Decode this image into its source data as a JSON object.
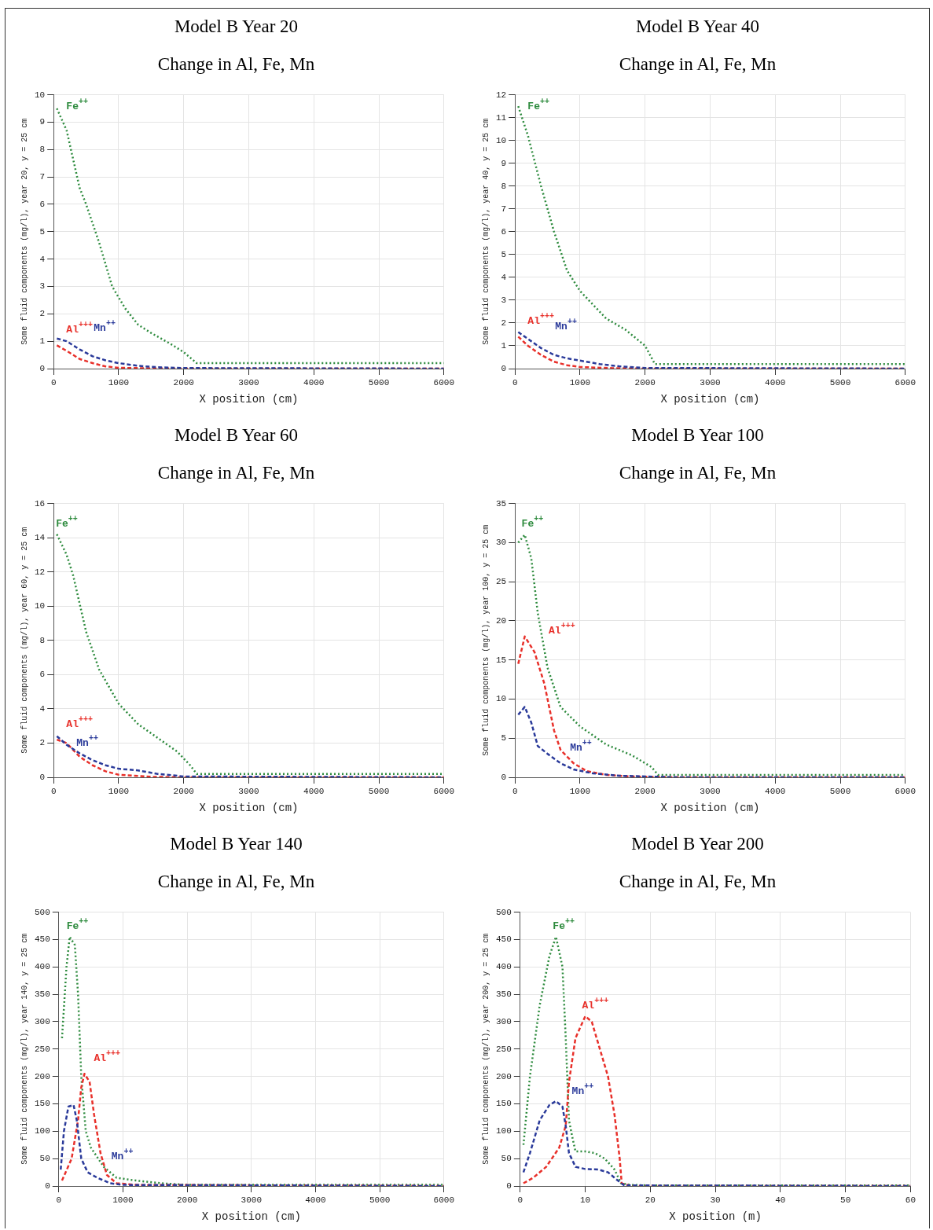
{
  "chart_data": [
    {
      "type": "line",
      "title": "Model B Year 20",
      "subtitle": "Change in Al, Fe, Mn",
      "xlabel": "X position (cm)",
      "ylabel": "Some fluid components (mg/l), year 20, y = 25 cm",
      "xlim": [
        0,
        6000
      ],
      "xticks": [
        0,
        1000,
        2000,
        3000,
        4000,
        5000,
        6000
      ],
      "ylim": [
        0,
        10
      ],
      "yticks": [
        0,
        1,
        2,
        3,
        4,
        5,
        6,
        7,
        8,
        9,
        10
      ],
      "grid": true,
      "legend": false,
      "marker": "none",
      "series": [
        {
          "name": "Fe$^{++}$",
          "color": "#2e8b3e",
          "line_style": "dotted",
          "x": [
            50,
            200,
            400,
            500,
            700,
            900,
            1100,
            1300,
            1500,
            1800,
            2000,
            2200,
            3000,
            6000
          ],
          "values": [
            9.5,
            8.7,
            6.6,
            6.0,
            4.6,
            3.0,
            2.2,
            1.6,
            1.3,
            0.9,
            0.6,
            0.2,
            0.2,
            0.2
          ]
        },
        {
          "name": "Al$^{+++}$",
          "color": "#e8302a",
          "line_style": "dashed",
          "x": [
            50,
            200,
            400,
            600,
            800,
            1000,
            1500,
            2000,
            6000
          ],
          "values": [
            0.85,
            0.65,
            0.35,
            0.2,
            0.08,
            0.03,
            0.01,
            0,
            0
          ]
        },
        {
          "name": "Mn$^{++}$",
          "color": "#2a3a9a",
          "line_style": "dashed",
          "x": [
            50,
            200,
            400,
            600,
            800,
            1000,
            1300,
            1600,
            2000,
            6000
          ],
          "values": [
            1.1,
            1.0,
            0.7,
            0.45,
            0.3,
            0.2,
            0.1,
            0.05,
            0.02,
            0
          ]
        }
      ]
    },
    {
      "type": "line",
      "title": "Model B Year 40",
      "subtitle": "Change in Al, Fe, Mn",
      "xlabel": "X position (cm)",
      "ylabel": "Some fluid components (mg/l), year 40, y = 25 cm",
      "xlim": [
        0,
        6000
      ],
      "xticks": [
        0,
        1000,
        2000,
        3000,
        4000,
        5000,
        6000
      ],
      "ylim": [
        0,
        12
      ],
      "yticks": [
        0,
        1,
        2,
        3,
        4,
        5,
        6,
        7,
        8,
        9,
        10,
        11,
        12
      ],
      "grid": true,
      "legend": false,
      "marker": "none",
      "series": [
        {
          "name": "Fe$^{++}$",
          "color": "#2e8b3e",
          "line_style": "dotted",
          "x": [
            50,
            200,
            400,
            600,
            800,
            1000,
            1200,
            1400,
            1700,
            2000,
            2150,
            6000
          ],
          "values": [
            11.5,
            10.2,
            8.0,
            6.0,
            4.3,
            3.4,
            2.8,
            2.2,
            1.7,
            1.0,
            0.2,
            0.2
          ]
        },
        {
          "name": "Al$^{+++}$",
          "color": "#e8302a",
          "line_style": "dashed",
          "x": [
            50,
            200,
            400,
            600,
            800,
            1000,
            1500,
            2000,
            6000
          ],
          "values": [
            1.4,
            1.0,
            0.6,
            0.3,
            0.15,
            0.07,
            0.02,
            0,
            0
          ]
        },
        {
          "name": "Mn$^{++}$",
          "color": "#2a3a9a",
          "line_style": "dashed",
          "x": [
            50,
            200,
            400,
            600,
            800,
            1000,
            1300,
            1600,
            2000,
            6000
          ],
          "values": [
            1.6,
            1.3,
            0.9,
            0.6,
            0.45,
            0.35,
            0.2,
            0.1,
            0.03,
            0
          ]
        }
      ]
    },
    {
      "type": "line",
      "title": "Model B Year 60",
      "subtitle": "Change in Al, Fe, Mn",
      "xlabel": "X position (cm)",
      "ylabel": "Some fluid components (mg/l), year 60, y = 25 cm",
      "xlim": [
        0,
        6000
      ],
      "xticks": [
        0,
        1000,
        2000,
        3000,
        4000,
        5000,
        6000
      ],
      "ylim": [
        0,
        16
      ],
      "yticks": [
        0,
        2,
        4,
        6,
        8,
        10,
        12,
        14,
        16
      ],
      "grid": true,
      "legend": false,
      "marker": "none",
      "series": [
        {
          "name": "Fe$^{++}$",
          "color": "#2e8b3e",
          "line_style": "dotted",
          "x": [
            50,
            200,
            300,
            500,
            700,
            1000,
            1300,
            1600,
            1900,
            2100,
            2200,
            6000
          ],
          "values": [
            14.2,
            13.0,
            11.8,
            8.5,
            6.3,
            4.3,
            3.1,
            2.3,
            1.5,
            0.7,
            0.2,
            0.2
          ]
        },
        {
          "name": "Al$^{+++}$",
          "color": "#e8302a",
          "line_style": "dashed",
          "x": [
            50,
            200,
            400,
            600,
            800,
            1000,
            1500,
            2000,
            6000
          ],
          "values": [
            2.2,
            2.0,
            1.2,
            0.7,
            0.35,
            0.15,
            0.03,
            0,
            0
          ]
        },
        {
          "name": "Mn$^{++}$",
          "color": "#2a3a9a",
          "line_style": "dashed",
          "x": [
            50,
            200,
            400,
            600,
            800,
            1000,
            1300,
            1600,
            2000,
            6000
          ],
          "values": [
            2.4,
            1.9,
            1.4,
            1.0,
            0.7,
            0.5,
            0.4,
            0.2,
            0.05,
            0
          ]
        }
      ]
    },
    {
      "type": "line",
      "title": "Model B Year 100",
      "subtitle": "Change in Al, Fe, Mn",
      "xlabel": "X position (cm)",
      "ylabel": "Some fluid components (mg/l), year 100, y = 25 cm",
      "xlim": [
        0,
        6000
      ],
      "xticks": [
        0,
        1000,
        2000,
        3000,
        4000,
        5000,
        6000
      ],
      "ylim": [
        0,
        35
      ],
      "yticks": [
        0,
        5,
        10,
        15,
        20,
        25,
        30,
        35
      ],
      "grid": true,
      "legend": false,
      "marker": "none",
      "series": [
        {
          "name": "Fe$^{++}$",
          "color": "#2e8b3e",
          "line_style": "dotted",
          "x": [
            50,
            150,
            250,
            350,
            500,
            700,
            1000,
            1400,
            1800,
            2100,
            2200,
            6000
          ],
          "values": [
            30,
            31,
            28,
            21,
            14,
            9,
            6.5,
            4.2,
            2.8,
            1.3,
            0.3,
            0.3
          ]
        },
        {
          "name": "Al$^{+++}$",
          "color": "#e8302a",
          "line_style": "dashed",
          "x": [
            50,
            150,
            300,
            450,
            600,
            700,
            900,
            1100,
            1400,
            1800,
            2500,
            6000
          ],
          "values": [
            14.5,
            18,
            16,
            12,
            6,
            3.5,
            1.8,
            0.8,
            0.3,
            0.1,
            0,
            0
          ]
        },
        {
          "name": "Mn$^{++}$",
          "color": "#2a3a9a",
          "line_style": "dashed",
          "x": [
            50,
            150,
            250,
            350,
            500,
            700,
            900,
            1200,
            1600,
            2500,
            6000
          ],
          "values": [
            8,
            9,
            7,
            4,
            3,
            1.8,
            1.0,
            0.5,
            0.2,
            0,
            0
          ]
        }
      ]
    },
    {
      "type": "line",
      "title": "Model B Year 140",
      "subtitle": "Change in Al, Fe, Mn",
      "xlabel": "X position (cm)",
      "ylabel": "Some fluid components (mg/l), year 140, y = 25 cm",
      "xlim": [
        0,
        6000
      ],
      "xticks": [
        0,
        1000,
        2000,
        3000,
        4000,
        5000,
        6000
      ],
      "ylim": [
        0,
        500
      ],
      "yticks": [
        0,
        50,
        100,
        150,
        200,
        250,
        300,
        350,
        400,
        450,
        500
      ],
      "grid": true,
      "legend": false,
      "marker": "none",
      "series": [
        {
          "name": "Fe$^{++}$",
          "color": "#2e8b3e",
          "line_style": "dotted",
          "x": [
            50,
            120,
            170,
            250,
            300,
            350,
            420,
            500,
            700,
            900,
            1200,
            1600,
            2000,
            6000
          ],
          "values": [
            270,
            400,
            455,
            440,
            350,
            200,
            100,
            70,
            35,
            15,
            10,
            5,
            2,
            2
          ]
        },
        {
          "name": "Al$^{+++}$",
          "color": "#e8302a",
          "line_style": "dashed",
          "x": [
            50,
            200,
            300,
            350,
            400,
            480,
            550,
            650,
            750,
            900,
            1200,
            6000
          ],
          "values": [
            10,
            50,
            120,
            180,
            205,
            190,
            130,
            60,
            20,
            5,
            2,
            0
          ]
        },
        {
          "name": "Mn$^{++}$",
          "color": "#2a3a9a",
          "line_style": "dashed",
          "x": [
            30,
            80,
            150,
            230,
            280,
            350,
            450,
            600,
            800,
            1000,
            6000
          ],
          "values": [
            30,
            100,
            145,
            148,
            120,
            50,
            25,
            15,
            5,
            2,
            0
          ]
        }
      ]
    },
    {
      "type": "line",
      "title": "Model B Year 200",
      "subtitle": "Change in Al, Fe, Mn",
      "xlabel": "X position (m)",
      "ylabel": "Some fluid components (mg/l), year 200, y = 25 cm",
      "xlim": [
        0,
        60
      ],
      "xticks": [
        0,
        10,
        20,
        30,
        40,
        50,
        60
      ],
      "ylim": [
        0,
        500
      ],
      "yticks": [
        0,
        50,
        100,
        150,
        200,
        250,
        300,
        350,
        400,
        450,
        500
      ],
      "grid": true,
      "legend": false,
      "marker": "none",
      "series": [
        {
          "name": "Fe$^{++}$",
          "color": "#2e8b3e",
          "line_style": "dotted",
          "x": [
            0.5,
            1.5,
            3,
            4.5,
            5.5,
            6.5,
            7,
            7.5,
            8,
            8.5,
            10,
            11.5,
            13,
            14.5,
            15.5,
            17,
            20,
            60
          ],
          "values": [
            75,
            200,
            330,
            420,
            455,
            400,
            270,
            120,
            90,
            63,
            63,
            60,
            50,
            30,
            5,
            2,
            1,
            1
          ]
        },
        {
          "name": "Al$^{+++}$",
          "color": "#e8302a",
          "line_style": "dashed",
          "x": [
            0.5,
            2,
            4,
            6,
            7,
            7.5,
            8.5,
            10,
            11,
            12,
            13.5,
            14.5,
            15.3,
            15.6,
            17,
            60
          ],
          "values": [
            5,
            15,
            35,
            70,
            110,
            190,
            270,
            310,
            300,
            260,
            200,
            130,
            50,
            5,
            0,
            0
          ]
        },
        {
          "name": "Mn$^{++}$",
          "color": "#2a3a9a",
          "line_style": "dashed",
          "x": [
            0.5,
            1.5,
            3,
            4.5,
            5.5,
            6.5,
            7,
            7.5,
            8.5,
            10,
            12,
            13.5,
            15,
            16,
            60
          ],
          "values": [
            25,
            60,
            120,
            148,
            155,
            145,
            110,
            60,
            35,
            31,
            30,
            25,
            10,
            1,
            0
          ]
        }
      ]
    }
  ]
}
